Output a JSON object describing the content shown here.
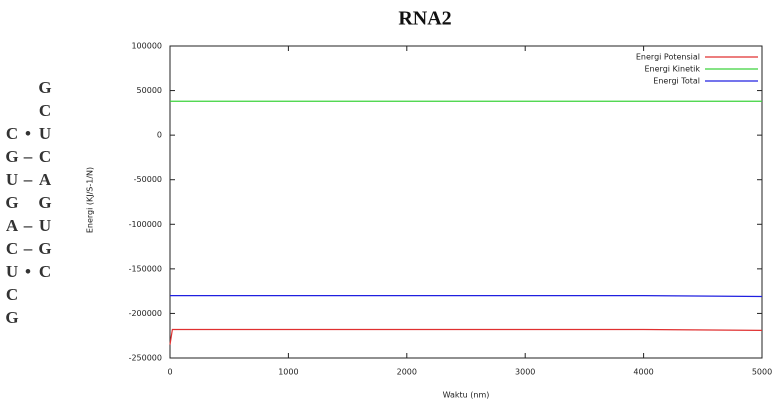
{
  "chart_data": {
    "type": "line",
    "title": "RNA2",
    "xlabel": "Waktu (nm)",
    "ylabel": "Energi (KJ/S-1/N)",
    "x": [
      0,
      20,
      1000,
      2000,
      3000,
      4000,
      5000
    ],
    "series": [
      {
        "name": "Energi Potensial",
        "color": "#e03030",
        "values": [
          -235000,
          -218000,
          -218000,
          -218000,
          -218000,
          -218000,
          -219000
        ]
      },
      {
        "name": "Energi Kinetik",
        "color": "#3cd23c",
        "values": [
          38000,
          38000,
          38000,
          38000,
          38000,
          38000,
          38000
        ]
      },
      {
        "name": "Energi Total",
        "color": "#2020e0",
        "values": [
          -180000,
          -180000,
          -180000,
          -180000,
          -180000,
          -180000,
          -181000
        ]
      }
    ],
    "xlim": [
      0,
      5000
    ],
    "xticks": [
      0,
      1000,
      2000,
      3000,
      4000,
      5000
    ],
    "ylim": [
      -250000,
      100000
    ],
    "yticks": [
      -250000,
      -200000,
      -150000,
      -100000,
      -50000,
      0,
      50000,
      100000
    ],
    "legend": "upper right"
  },
  "rna": {
    "rows": [
      {
        "right": "G"
      },
      {
        "right": "C"
      },
      {
        "left": "C",
        "bond": "•",
        "right": "U"
      },
      {
        "left": "G",
        "bond": "–",
        "right": "C"
      },
      {
        "left": "U",
        "bond": "–",
        "right": "A"
      },
      {
        "left": "G",
        "right": "G"
      },
      {
        "left": "A",
        "bond": "–",
        "right": "U"
      },
      {
        "left": "C",
        "bond": "–",
        "right": "G"
      },
      {
        "left": "U",
        "bond": "•",
        "right": "C"
      },
      {
        "left": "C"
      },
      {
        "left": "G"
      }
    ]
  }
}
